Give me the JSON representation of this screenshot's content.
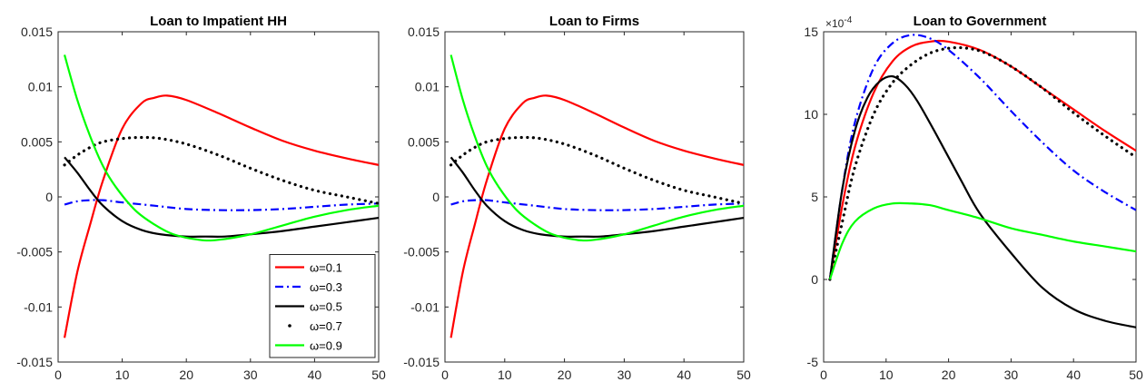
{
  "chart_data": [
    {
      "type": "line",
      "title": "Loan to Impatient HH",
      "xlabel": "",
      "ylabel": "",
      "xlim": [
        0,
        50
      ],
      "ylim": [
        -0.015,
        0.015
      ],
      "xticks": [
        0,
        10,
        20,
        30,
        40,
        50
      ],
      "xtick_labels": [
        "0",
        "10",
        "20",
        "30",
        "40",
        "50"
      ],
      "yticks": [
        -0.015,
        -0.01,
        -0.005,
        0,
        0.005,
        0.01,
        0.015
      ],
      "ytick_labels": [
        "-0.015",
        "-0.01",
        "-0.005",
        "0",
        "0.005",
        "0.01",
        "0.015"
      ],
      "grid": false,
      "legend": {
        "placement": "bottom-right",
        "entries": [
          "ω=0.1",
          "ω=0.3",
          "ω=0.5",
          "ω=0.7",
          "ω=0.9"
        ]
      },
      "series": [
        {
          "name": "ω=0.1",
          "color": "#ff0000",
          "style": "solid",
          "x": [
            1,
            3,
            5,
            7,
            10,
            13,
            15,
            17,
            20,
            25,
            30,
            35,
            40,
            45,
            50
          ],
          "y": [
            -0.0128,
            -0.0068,
            -0.0025,
            0.0015,
            0.0062,
            0.0085,
            0.009,
            0.0092,
            0.0088,
            0.0076,
            0.0063,
            0.0051,
            0.0042,
            0.0035,
            0.0029
          ]
        },
        {
          "name": "ω=0.3",
          "color": "#0000ff",
          "style": "dashdot",
          "x": [
            1,
            3,
            5,
            7,
            10,
            15,
            20,
            25,
            30,
            35,
            40,
            45,
            50
          ],
          "y": [
            -0.0007,
            -0.0004,
            -0.0003,
            -0.0003,
            -0.0005,
            -0.0008,
            -0.0011,
            -0.0012,
            -0.0012,
            -0.0011,
            -0.0009,
            -0.0007,
            -0.0006
          ]
        },
        {
          "name": "ω=0.5",
          "color": "#000000",
          "style": "solid",
          "x": [
            1,
            3,
            5,
            7,
            10,
            13,
            16,
            20,
            23,
            26,
            30,
            35,
            40,
            45,
            50
          ],
          "y": [
            0.0036,
            0.0022,
            0.0006,
            -0.0008,
            -0.0022,
            -0.003,
            -0.0034,
            -0.0036,
            -0.0036,
            -0.0036,
            -0.0034,
            -0.0031,
            -0.0027,
            -0.0023,
            -0.0019
          ]
        },
        {
          "name": "ω=0.7",
          "color": "#000000",
          "style": "dotted",
          "x": [
            1,
            3,
            5,
            7,
            10,
            13,
            16,
            20,
            25,
            30,
            35,
            40,
            45,
            50
          ],
          "y": [
            0.0029,
            0.0038,
            0.0045,
            0.005,
            0.0053,
            0.0054,
            0.0053,
            0.0048,
            0.0038,
            0.0026,
            0.0015,
            0.0006,
            0.0,
            -0.0006
          ]
        },
        {
          "name": "ω=0.9",
          "color": "#00ff00",
          "style": "solid",
          "x": [
            1,
            3,
            5,
            7,
            9,
            12,
            15,
            18,
            22,
            25,
            30,
            35,
            40,
            45,
            50
          ],
          "y": [
            0.0129,
            0.0088,
            0.0055,
            0.0028,
            0.0009,
            -0.0012,
            -0.0025,
            -0.0034,
            -0.0039,
            -0.0039,
            -0.0034,
            -0.0026,
            -0.0018,
            -0.0012,
            -0.0008
          ]
        }
      ]
    },
    {
      "type": "line",
      "title": "Loan to Firms",
      "xlabel": "",
      "ylabel": "",
      "xlim": [
        0,
        50
      ],
      "ylim": [
        -0.015,
        0.015
      ],
      "xticks": [
        0,
        10,
        20,
        30,
        40,
        50
      ],
      "xtick_labels": [
        "0",
        "10",
        "20",
        "30",
        "40",
        "50"
      ],
      "yticks": [
        -0.015,
        -0.01,
        -0.005,
        0,
        0.005,
        0.01,
        0.015
      ],
      "ytick_labels": [
        "-0.015",
        "-0.01",
        "-0.005",
        "0",
        "0.005",
        "0.01",
        "0.015"
      ],
      "grid": false,
      "series": [
        {
          "name": "ω=0.1",
          "color": "#ff0000",
          "style": "solid",
          "x": [
            1,
            3,
            5,
            7,
            10,
            13,
            15,
            17,
            20,
            25,
            30,
            35,
            40,
            45,
            50
          ],
          "y": [
            -0.0128,
            -0.0068,
            -0.0025,
            0.0015,
            0.0062,
            0.0085,
            0.009,
            0.0092,
            0.0088,
            0.0076,
            0.0063,
            0.0051,
            0.0042,
            0.0035,
            0.0029
          ]
        },
        {
          "name": "ω=0.3",
          "color": "#0000ff",
          "style": "dashdot",
          "x": [
            1,
            3,
            5,
            7,
            10,
            15,
            20,
            25,
            30,
            35,
            40,
            45,
            50
          ],
          "y": [
            -0.0007,
            -0.0004,
            -0.0003,
            -0.0003,
            -0.0005,
            -0.0008,
            -0.0011,
            -0.0012,
            -0.0012,
            -0.0011,
            -0.0009,
            -0.0007,
            -0.0006
          ]
        },
        {
          "name": "ω=0.5",
          "color": "#000000",
          "style": "solid",
          "x": [
            1,
            3,
            5,
            7,
            10,
            13,
            16,
            20,
            23,
            26,
            30,
            35,
            40,
            45,
            50
          ],
          "y": [
            0.0036,
            0.0022,
            0.0006,
            -0.0008,
            -0.0022,
            -0.003,
            -0.0034,
            -0.0036,
            -0.0036,
            -0.0036,
            -0.0034,
            -0.0031,
            -0.0027,
            -0.0023,
            -0.0019
          ]
        },
        {
          "name": "ω=0.7",
          "color": "#000000",
          "style": "dotted",
          "x": [
            1,
            3,
            5,
            7,
            10,
            13,
            16,
            20,
            25,
            30,
            35,
            40,
            45,
            50
          ],
          "y": [
            0.0029,
            0.0038,
            0.0045,
            0.005,
            0.0053,
            0.0054,
            0.0053,
            0.0048,
            0.0038,
            0.0026,
            0.0015,
            0.0006,
            0.0,
            -0.0006
          ]
        },
        {
          "name": "ω=0.9",
          "color": "#00ff00",
          "style": "solid",
          "x": [
            1,
            3,
            5,
            7,
            9,
            12,
            15,
            18,
            22,
            25,
            30,
            35,
            40,
            45,
            50
          ],
          "y": [
            0.0129,
            0.0088,
            0.0055,
            0.0028,
            0.0009,
            -0.0012,
            -0.0025,
            -0.0034,
            -0.0039,
            -0.0039,
            -0.0034,
            -0.0026,
            -0.0018,
            -0.0012,
            -0.0008
          ]
        }
      ]
    },
    {
      "type": "line",
      "title": "Loan to Government",
      "xlabel": "",
      "ylabel": "",
      "y_exponent_label": "×10",
      "y_exponent_power": "-4",
      "xlim": [
        0,
        50
      ],
      "ylim": [
        -5,
        15
      ],
      "xticks": [
        0,
        10,
        20,
        30,
        40,
        50
      ],
      "xtick_labels": [
        "0",
        "10",
        "20",
        "30",
        "40",
        "50"
      ],
      "yticks": [
        -5,
        0,
        5,
        10,
        15
      ],
      "ytick_labels": [
        "-5",
        "0",
        "5",
        "10",
        "15"
      ],
      "grid": false,
      "series": [
        {
          "name": "ω=0.1",
          "color": "#ff0000",
          "style": "solid",
          "x": [
            1,
            3,
            5,
            8,
            11,
            14,
            17,
            20,
            25,
            30,
            35,
            40,
            45,
            50
          ],
          "y": [
            0,
            4.5,
            8,
            11.3,
            13.2,
            14.1,
            14.4,
            14.4,
            13.9,
            12.9,
            11.6,
            10.3,
            9.0,
            7.8
          ]
        },
        {
          "name": "ω=0.3",
          "color": "#0000ff",
          "style": "dashdot",
          "x": [
            1,
            3,
            5,
            8,
            11,
            14,
            17,
            20,
            25,
            30,
            35,
            40,
            45,
            50
          ],
          "y": [
            0,
            5.5,
            9.5,
            12.8,
            14.3,
            14.8,
            14.6,
            13.9,
            12.2,
            10.2,
            8.3,
            6.6,
            5.3,
            4.2
          ]
        },
        {
          "name": "ω=0.5",
          "color": "#000000",
          "style": "solid",
          "x": [
            1,
            3,
            5,
            7,
            9,
            11,
            13,
            15,
            18,
            22,
            25,
            30,
            35,
            40,
            45,
            50
          ],
          "y": [
            0,
            5.5,
            9.0,
            11.0,
            12.0,
            12.3,
            11.8,
            10.8,
            8.8,
            6.0,
            4.0,
            1.6,
            -0.5,
            -1.8,
            -2.5,
            -2.9
          ]
        },
        {
          "name": "ω=0.7",
          "color": "#000000",
          "style": "dotted",
          "x": [
            1,
            3,
            5,
            8,
            11,
            14,
            17,
            20,
            23,
            26,
            30,
            35,
            40,
            45,
            50
          ],
          "y": [
            0,
            3.5,
            6.8,
            10.0,
            11.9,
            13.0,
            13.7,
            14.0,
            14.0,
            13.7,
            12.9,
            11.6,
            10.1,
            8.7,
            7.4
          ]
        },
        {
          "name": "ω=0.9",
          "color": "#00ff00",
          "style": "solid",
          "x": [
            1,
            3,
            5,
            8,
            11,
            14,
            17,
            20,
            25,
            30,
            35,
            40,
            45,
            50
          ],
          "y": [
            0,
            2.2,
            3.5,
            4.3,
            4.6,
            4.6,
            4.5,
            4.2,
            3.7,
            3.1,
            2.7,
            2.3,
            2.0,
            1.7
          ]
        }
      ]
    }
  ]
}
